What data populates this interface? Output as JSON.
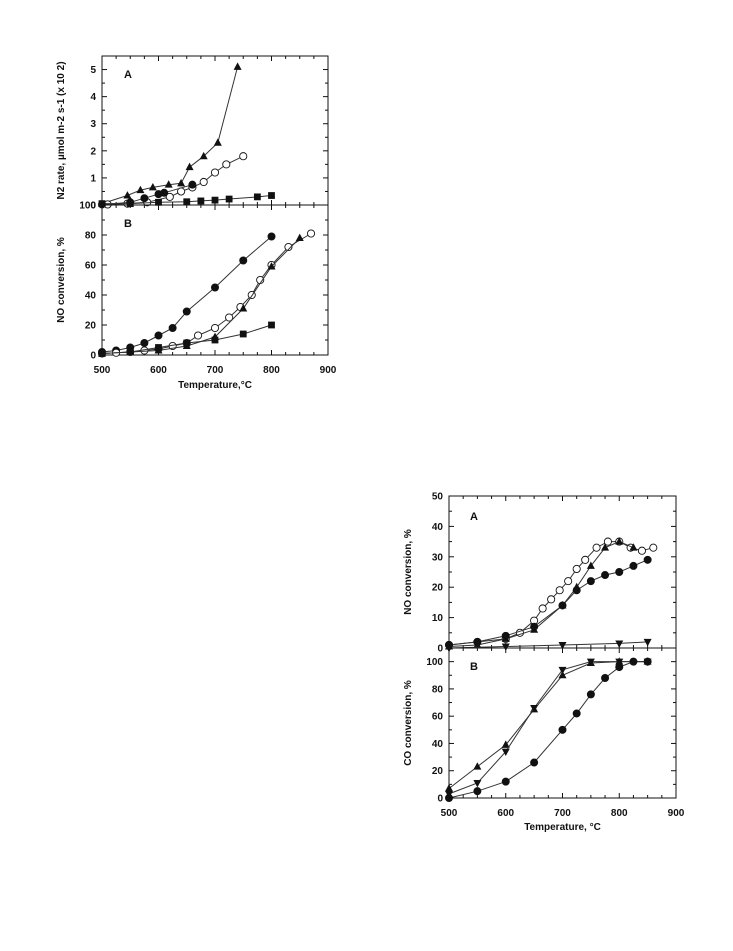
{
  "chart_data": [
    {
      "type": "scatter",
      "figure": 1,
      "x_tick_labels": [
        "500",
        "600",
        "700",
        "800",
        "900"
      ],
      "xlim": [
        500,
        900
      ],
      "xlabel": "Temperature,°C",
      "panels": [
        {
          "label": "A",
          "ylim": [
            0,
            5.5
          ],
          "y_tick_labels": [
            "0",
            "1",
            "2",
            "3",
            "4",
            "5"
          ],
          "ylabel": "N2 rate, µmol m-2 s-1 (x 10 2)",
          "series": [
            {
              "marker": "triangle-up",
              "x": [
                500,
                545,
                568,
                590,
                618,
                640,
                655,
                680,
                705,
                740
              ],
              "y": [
                0.05,
                0.35,
                0.55,
                0.65,
                0.75,
                0.8,
                1.4,
                1.8,
                2.3,
                5.1
              ]
            },
            {
              "marker": "open-circle",
              "x": [
                510,
                545,
                580,
                620,
                640,
                660,
                680,
                700,
                720,
                750
              ],
              "y": [
                0.02,
                0.05,
                0.1,
                0.3,
                0.5,
                0.65,
                0.85,
                1.2,
                1.5,
                1.8
              ]
            },
            {
              "marker": "filled-circle",
              "x": [
                500,
                550,
                575,
                600,
                610,
                660
              ],
              "y": [
                0.02,
                0.1,
                0.25,
                0.4,
                0.45,
                0.75
              ]
            },
            {
              "marker": "filled-square",
              "x": [
                500,
                550,
                600,
                650,
                675,
                700,
                725,
                775,
                800
              ],
              "y": [
                0.05,
                0.05,
                0.1,
                0.12,
                0.15,
                0.18,
                0.22,
                0.3,
                0.35
              ]
            }
          ]
        },
        {
          "label": "B",
          "ylim": [
            0,
            100
          ],
          "y_tick_labels": [
            "0",
            "20",
            "40",
            "60",
            "80",
            "100"
          ],
          "ylabel": "NO conversion, %",
          "series": [
            {
              "marker": "filled-circle",
              "x": [
                500,
                525,
                550,
                575,
                600,
                625,
                650,
                700,
                750,
                800
              ],
              "y": [
                2,
                3,
                5,
                8,
                13,
                18,
                29,
                45,
                63,
                79
              ]
            },
            {
              "marker": "open-circle",
              "x": [
                500,
                525,
                550,
                575,
                600,
                625,
                650,
                670,
                700,
                725,
                745,
                765,
                780,
                800,
                830,
                870
              ],
              "y": [
                1,
                1.5,
                2,
                3,
                4,
                6,
                8,
                13,
                18,
                25,
                32,
                40,
                50,
                60,
                72,
                81
              ]
            },
            {
              "marker": "triangle-up",
              "x": [
                500,
                550,
                600,
                650,
                700,
                750,
                800,
                850
              ],
              "y": [
                1,
                2,
                3,
                6,
                12,
                31,
                59,
                78
              ]
            },
            {
              "marker": "filled-square",
              "x": [
                500,
                550,
                600,
                650,
                700,
                750,
                800
              ],
              "y": [
                1,
                2,
                5,
                8,
                10,
                14,
                20
              ]
            }
          ]
        }
      ]
    },
    {
      "type": "scatter",
      "figure": 2,
      "x_tick_labels": [
        "500",
        "600",
        "700",
        "800",
        "900"
      ],
      "xlim": [
        500,
        900
      ],
      "xlabel": "Temperature, °C",
      "panels": [
        {
          "label": "A",
          "ylim": [
            0,
            50
          ],
          "y_tick_labels": [
            "0",
            "10",
            "20",
            "30",
            "40",
            "50"
          ],
          "ylabel": "NO conversion, %",
          "series": [
            {
              "marker": "open-circle",
              "x": [
                500,
                550,
                600,
                625,
                650,
                665,
                680,
                695,
                710,
                725,
                740,
                760,
                780,
                800,
                820,
                840,
                860
              ],
              "y": [
                1,
                2,
                3,
                5,
                9,
                13,
                16,
                19,
                22,
                26,
                29,
                33,
                35,
                35,
                33,
                32,
                33
              ]
            },
            {
              "marker": "triangle-up",
              "x": [
                500,
                550,
                600,
                650,
                700,
                725,
                750,
                775,
                800,
                825
              ],
              "y": [
                0.5,
                1,
                3,
                6,
                14,
                20,
                27,
                33,
                35,
                33
              ]
            },
            {
              "marker": "filled-circle",
              "x": [
                500,
                550,
                600,
                650,
                700,
                725,
                750,
                775,
                800,
                825,
                850
              ],
              "y": [
                1,
                2,
                4,
                7,
                14,
                19,
                22,
                24,
                25,
                27,
                29
              ]
            },
            {
              "marker": "triangle-down",
              "x": [
                500,
                600,
                700,
                800,
                850
              ],
              "y": [
                0,
                0.5,
                1,
                1.5,
                2
              ]
            }
          ]
        },
        {
          "label": "B",
          "ylim": [
            0,
            110
          ],
          "y_tick_labels": [
            "0",
            "20",
            "40",
            "60",
            "80",
            "100"
          ],
          "ylabel": "CO conversion, %",
          "series": [
            {
              "marker": "triangle-up",
              "x": [
                500,
                550,
                600,
                650,
                700,
                750,
                800,
                850
              ],
              "y": [
                7,
                23,
                39,
                65,
                90,
                99,
                100,
                100
              ]
            },
            {
              "marker": "triangle-down",
              "x": [
                500,
                550,
                600,
                650,
                700,
                750,
                800,
                850
              ],
              "y": [
                3,
                11,
                34,
                66,
                94,
                100,
                100,
                100
              ]
            },
            {
              "marker": "filled-circle",
              "x": [
                500,
                550,
                600,
                650,
                700,
                725,
                750,
                775,
                800,
                825,
                850
              ],
              "y": [
                0,
                5,
                12,
                26,
                50,
                62,
                76,
                88,
                96,
                100,
                100
              ]
            }
          ]
        }
      ]
    }
  ]
}
